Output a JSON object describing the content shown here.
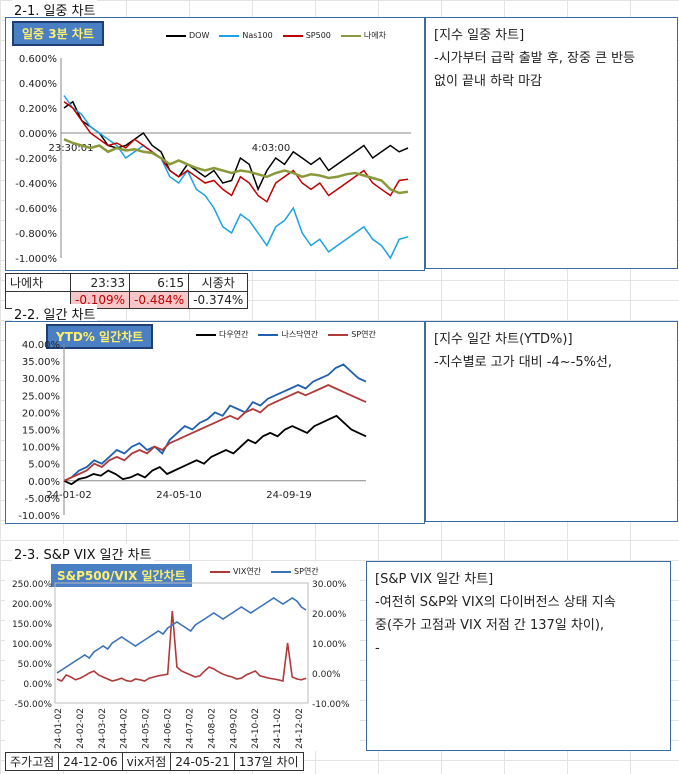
{
  "sections": {
    "s1": "2-1. 일중 차트",
    "s2": "2-2. 일간 차트",
    "s3": "2-3. S&P VIX 일간 차트"
  },
  "notes": {
    "n1": [
      "[지수 일중 차트]",
      "-시가부터 급락 출발 후, 장중 큰 반등",
      "없이 끝내 하락 마감"
    ],
    "n2": [
      "[지수 일간 차트(YTD%)]",
      "-지수별로 고가 대비 -4~-5%선,"
    ],
    "n3": [
      "[S&P VIX 일간 차트]",
      "-여전히 S&P와 VIX의 다이버전스 상태 지속",
      "중(주가 고점과 VIX 저점 간 137일 차이),",
      "-"
    ]
  },
  "table1": {
    "row1": [
      "나에차",
      "23:33",
      "6:15",
      "시종차"
    ],
    "row2": [
      "",
      "-0.109%",
      "-0.484%",
      "-0.374%"
    ]
  },
  "table3": [
    "주가고점",
    "24-12-06",
    "vix저점",
    "24-05-21",
    "137일 차이"
  ],
  "colors": {
    "dow": "#000000",
    "nas": "#1aa3e0",
    "sp": "#c00000",
    "ni": "#8a9a3a",
    "blue": "#3c72b8",
    "red": "#b03a3a"
  },
  "chart_data": [
    {
      "type": "line",
      "title": "일중 3분 차트",
      "x_ticks": [
        "23:30:01",
        "4:03:00"
      ],
      "ylim": [
        -1.0,
        0.6
      ],
      "y_ticks": [
        "0.600%",
        "0.400%",
        "0.200%",
        "0.000%",
        "-0.200%",
        "-0.400%",
        "-0.600%",
        "-0.800%",
        "-1.000%"
      ],
      "series": [
        {
          "name": "DOW",
          "values": [
            0.2,
            0.25,
            0.1,
            0.05,
            0.0,
            -0.1,
            -0.12,
            -0.1,
            -0.05,
            0.0,
            -0.1,
            -0.15,
            -0.3,
            -0.35,
            -0.25,
            -0.3,
            -0.35,
            -0.3,
            -0.4,
            -0.38,
            -0.2,
            -0.25,
            -0.45,
            -0.3,
            -0.2,
            -0.25,
            -0.15,
            -0.2,
            -0.25,
            -0.2,
            -0.3,
            -0.25,
            -0.2,
            -0.15,
            -0.1,
            -0.2,
            -0.15,
            -0.1,
            -0.15,
            -0.12
          ]
        },
        {
          "name": "Nas100",
          "values": [
            0.3,
            0.2,
            0.15,
            0.05,
            0.0,
            -0.05,
            -0.1,
            -0.2,
            -0.15,
            -0.1,
            -0.15,
            -0.2,
            -0.35,
            -0.4,
            -0.3,
            -0.45,
            -0.5,
            -0.6,
            -0.75,
            -0.8,
            -0.65,
            -0.7,
            -0.8,
            -0.9,
            -0.75,
            -0.7,
            -0.6,
            -0.8,
            -0.9,
            -0.85,
            -0.95,
            -0.9,
            -0.85,
            -0.8,
            -0.75,
            -0.85,
            -0.9,
            -1.0,
            -0.85,
            -0.83
          ]
        },
        {
          "name": "SP500",
          "values": [
            0.25,
            0.2,
            0.1,
            0.0,
            -0.05,
            -0.1,
            -0.08,
            -0.12,
            -0.05,
            -0.1,
            -0.15,
            -0.2,
            -0.3,
            -0.35,
            -0.3,
            -0.35,
            -0.4,
            -0.38,
            -0.45,
            -0.5,
            -0.35,
            -0.4,
            -0.5,
            -0.55,
            -0.4,
            -0.35,
            -0.3,
            -0.4,
            -0.45,
            -0.4,
            -0.5,
            -0.45,
            -0.4,
            -0.35,
            -0.3,
            -0.4,
            -0.45,
            -0.5,
            -0.38,
            -0.37
          ]
        },
        {
          "name": "나에차",
          "values": [
            -0.05,
            -0.08,
            -0.1,
            -0.12,
            -0.1,
            -0.15,
            -0.12,
            -0.14,
            -0.13,
            -0.15,
            -0.16,
            -0.2,
            -0.25,
            -0.22,
            -0.25,
            -0.28,
            -0.3,
            -0.28,
            -0.3,
            -0.32,
            -0.3,
            -0.31,
            -0.33,
            -0.35,
            -0.32,
            -0.3,
            -0.32,
            -0.35,
            -0.33,
            -0.34,
            -0.36,
            -0.35,
            -0.33,
            -0.32,
            -0.34,
            -0.36,
            -0.38,
            -0.45,
            -0.48,
            -0.47
          ]
        }
      ]
    },
    {
      "type": "line",
      "title": "YTD% 일간차트",
      "x_ticks": [
        "24-01-02",
        "24-05-10",
        "24-09-19"
      ],
      "ylim": [
        -10,
        40
      ],
      "y_ticks": [
        "40.00%",
        "35.00%",
        "30.00%",
        "25.00%",
        "20.00%",
        "15.00%",
        "10.00%",
        "5.00%",
        "0.00%",
        "-5.00%",
        "-10.00%"
      ],
      "series": [
        {
          "name": "다우연간",
          "values": [
            0,
            -1,
            0.5,
            1,
            2,
            1.5,
            3,
            2,
            0.5,
            1,
            2,
            1,
            3,
            4,
            2,
            3,
            4,
            5,
            6,
            5,
            7,
            8,
            9,
            8,
            10,
            12,
            11,
            13,
            14,
            13,
            15,
            16,
            15,
            14,
            16,
            17,
            18,
            19,
            17,
            15,
            14,
            13
          ]
        },
        {
          "name": "나스닥연간",
          "values": [
            0,
            1,
            3,
            4,
            6,
            5,
            7,
            9,
            8,
            10,
            11,
            9,
            10,
            8,
            12,
            14,
            16,
            15,
            17,
            18,
            20,
            19,
            22,
            21,
            20,
            23,
            22,
            24,
            25,
            26,
            27,
            28,
            27,
            29,
            30,
            31,
            33,
            34,
            32,
            30,
            29
          ]
        },
        {
          "name": "SP연간",
          "values": [
            0,
            1,
            2,
            3,
            5,
            4,
            6,
            7,
            6,
            8,
            9,
            8,
            10,
            9,
            11,
            12,
            13,
            14,
            15,
            16,
            17,
            18,
            19,
            18,
            20,
            21,
            20,
            22,
            23,
            24,
            25,
            26,
            25,
            26,
            27,
            28,
            27,
            26,
            25,
            24,
            23
          ]
        }
      ]
    },
    {
      "type": "line",
      "title": "S&P500/VIX 일간차트",
      "x_ticks": [
        "24-01-02",
        "24-02-02",
        "24-03-02",
        "24-04-02",
        "24-05-02",
        "24-06-02",
        "24-07-02",
        "24-08-02",
        "24-09-02",
        "24-10-02",
        "24-11-02",
        "24-12-02"
      ],
      "ylim_left": [
        -50,
        250
      ],
      "y_ticks_left": [
        "250.00%",
        "200.00%",
        "150.00%",
        "100.00%",
        "50.00%",
        "0.00%",
        "-50.00%"
      ],
      "ylim_right": [
        -10,
        30
      ],
      "y_ticks_right": [
        "30.00%",
        "20.00%",
        "10.00%",
        "0.00%",
        "-10.00%"
      ],
      "series": [
        {
          "name": "VIX연간",
          "axis": "left",
          "values": [
            10,
            5,
            20,
            15,
            8,
            12,
            18,
            25,
            30,
            20,
            15,
            10,
            5,
            8,
            12,
            6,
            4,
            10,
            8,
            5,
            12,
            15,
            18,
            20,
            22,
            180,
            40,
            30,
            25,
            20,
            15,
            18,
            30,
            40,
            35,
            28,
            22,
            18,
            15,
            10,
            12,
            20,
            25,
            30,
            18,
            15,
            12,
            10,
            8,
            5,
            100,
            15,
            10,
            8,
            12
          ]
        },
        {
          "name": "SP연간",
          "axis": "right",
          "values": [
            0,
            1,
            2,
            3,
            4,
            5,
            6,
            5,
            7,
            8,
            9,
            8,
            10,
            11,
            12,
            11,
            10,
            9,
            10,
            11,
            12,
            13,
            14,
            13,
            15,
            16,
            17,
            16,
            15,
            14,
            16,
            17,
            18,
            19,
            20,
            19,
            18,
            19,
            20,
            21,
            22,
            21,
            20,
            21,
            22,
            23,
            24,
            25,
            24,
            23,
            24,
            25,
            24,
            22,
            21
          ]
        }
      ]
    }
  ]
}
